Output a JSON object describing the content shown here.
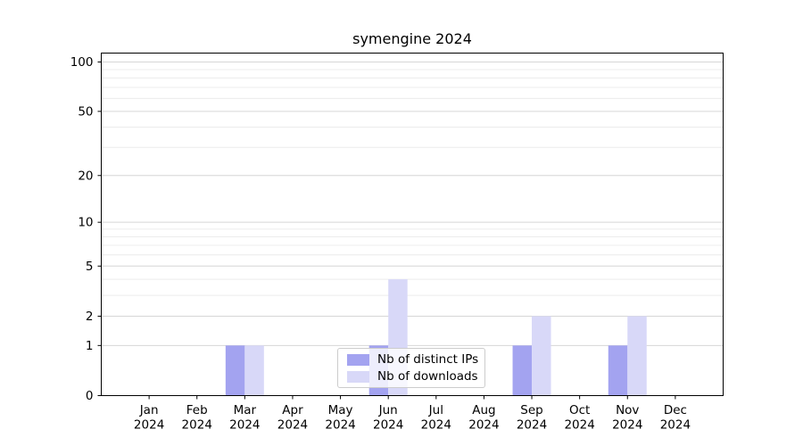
{
  "chart_data": {
    "type": "bar",
    "title": "symengine 2024",
    "categories": [
      "Jan",
      "Feb",
      "Mar",
      "Apr",
      "May",
      "Jun",
      "Jul",
      "Aug",
      "Sep",
      "Oct",
      "Nov",
      "Dec"
    ],
    "x_year": "2024",
    "series": [
      {
        "name": "Nb of distinct IPs",
        "color": "#a3a3f0",
        "values": [
          0,
          0,
          1,
          0,
          0,
          1,
          0,
          0,
          1,
          0,
          1,
          0
        ]
      },
      {
        "name": "Nb of downloads",
        "color": "#d8d8f8",
        "values": [
          0,
          0,
          1,
          0,
          0,
          4,
          0,
          0,
          2,
          0,
          2,
          0
        ]
      }
    ],
    "y_scale": "log1p",
    "y_ticks": [
      100,
      50,
      20,
      10,
      5,
      2,
      1,
      0
    ],
    "y_minor_gridlines": [
      3,
      4,
      6,
      7,
      8,
      9,
      30,
      40,
      60,
      70,
      80,
      90
    ],
    "ylim": [
      0,
      114
    ],
    "grid": "horizontal",
    "legend_position": "lower-center-inside",
    "colors": {
      "grid_major": "#d6d6d6",
      "grid_minor": "#ececec",
      "axis": "#000000",
      "text": "#000000",
      "background": "#ffffff"
    }
  }
}
